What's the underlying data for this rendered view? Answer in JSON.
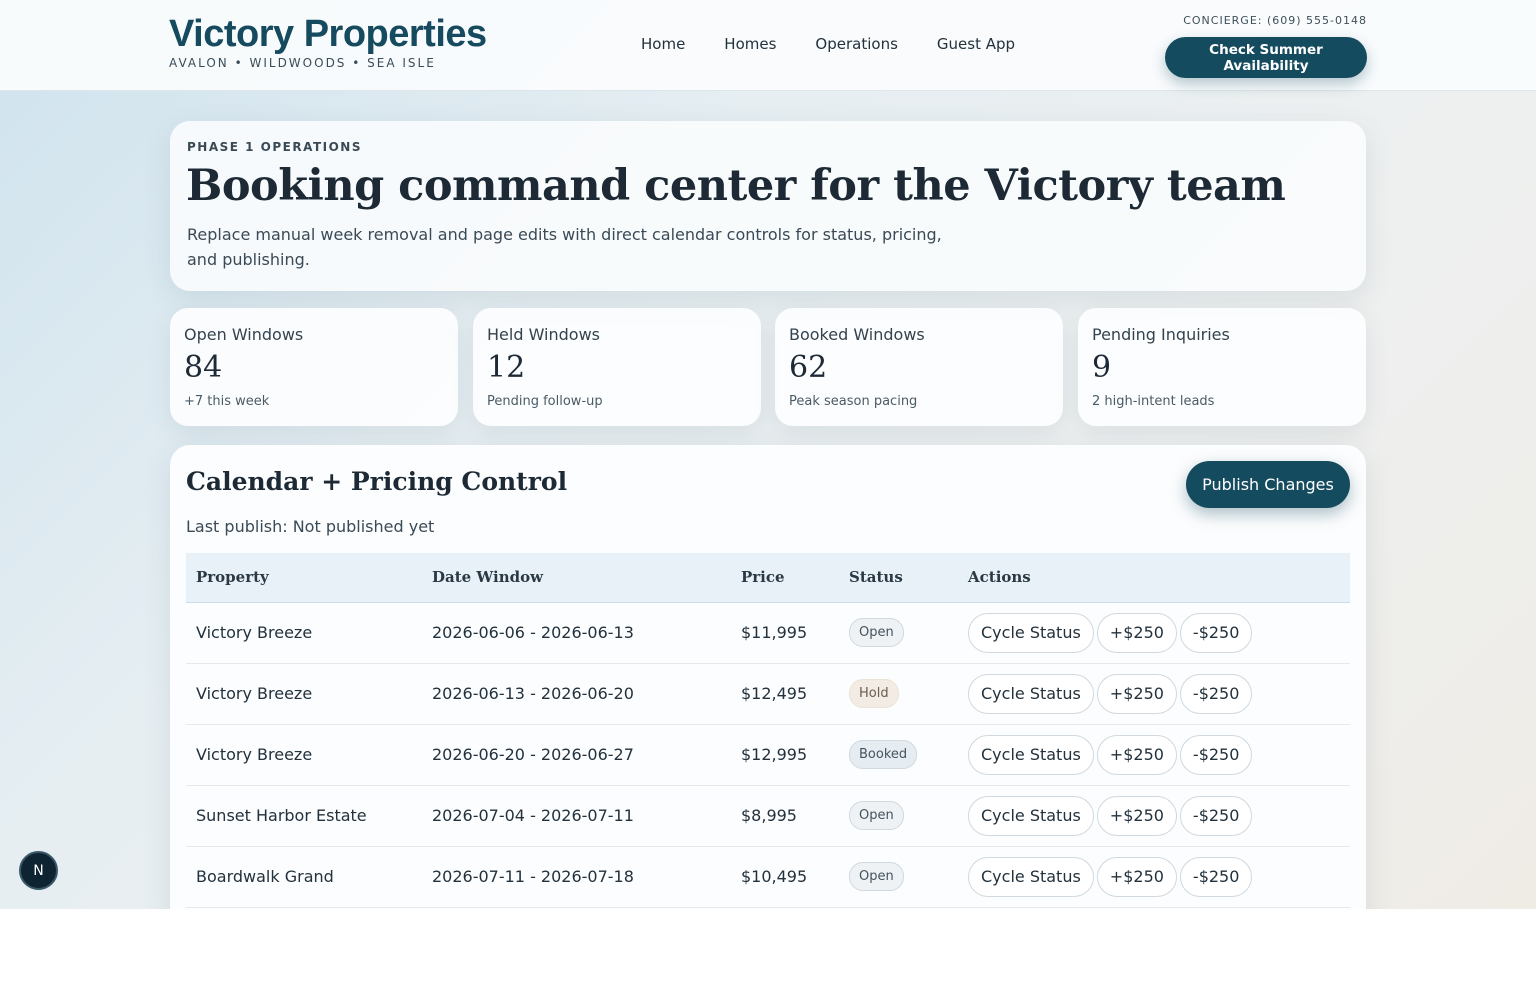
{
  "brand": {
    "name": "Victory Properties",
    "tagline": "AVALON • WILDWOODS • SEA ISLE"
  },
  "nav": [
    {
      "label": "Home"
    },
    {
      "label": "Homes"
    },
    {
      "label": "Operations"
    },
    {
      "label": "Guest App"
    }
  ],
  "concierge": "CONCIERGE: (609) 555-0148",
  "cta_top": "Check Summer Availability",
  "hero": {
    "eyebrow": "PHASE 1 OPERATIONS",
    "title": "Booking command center for the Victory team",
    "subtitle": "Replace manual week removal and page edits with direct calendar controls for status, pricing, and publishing."
  },
  "stats": [
    {
      "label": "Open Windows",
      "value": "84",
      "note": "+7 this week"
    },
    {
      "label": "Held Windows",
      "value": "12",
      "note": "Pending follow-up"
    },
    {
      "label": "Booked Windows",
      "value": "62",
      "note": "Peak season pacing"
    },
    {
      "label": "Pending Inquiries",
      "value": "9",
      "note": "2 high-intent leads"
    }
  ],
  "calendar": {
    "title": "Calendar + Pricing Control",
    "last_publish": "Last publish: Not published yet",
    "publish_label": "Publish Changes",
    "columns": [
      "Property",
      "Date Window",
      "Price",
      "Status",
      "Actions"
    ],
    "rows": [
      {
        "property": "Victory Breeze",
        "window": "2026-06-06 - 2026-06-13",
        "price": "$11,995",
        "status": "Open"
      },
      {
        "property": "Victory Breeze",
        "window": "2026-06-13 - 2026-06-20",
        "price": "$12,495",
        "status": "Hold"
      },
      {
        "property": "Victory Breeze",
        "window": "2026-06-20 - 2026-06-27",
        "price": "$12,995",
        "status": "Booked"
      },
      {
        "property": "Sunset Harbor Estate",
        "window": "2026-07-04 - 2026-07-11",
        "price": "$8,995",
        "status": "Open"
      },
      {
        "property": "Boardwalk Grand",
        "window": "2026-07-11 - 2026-07-18",
        "price": "$10,495",
        "status": "Open"
      }
    ],
    "actions": {
      "cycle": "Cycle Status",
      "plus": "+$250",
      "minus": "-$250"
    }
  },
  "fab": {
    "label": "N"
  },
  "colors": {
    "brand": "#154b5e",
    "text": "#1d2a36"
  }
}
